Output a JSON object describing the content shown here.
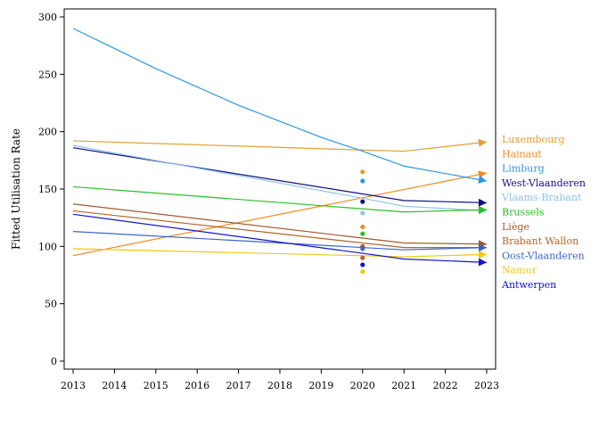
{
  "chart_data": {
    "type": "line",
    "title": "",
    "xlabel": "",
    "ylabel": "Fitted Utilisation Rate",
    "xlim": [
      2013,
      2023
    ],
    "ylim": [
      0,
      300
    ],
    "x_ticks": [
      "2013",
      "2014",
      "2015",
      "2016",
      "2017",
      "2018",
      "2019",
      "2020",
      "2021",
      "2022",
      "2023"
    ],
    "y_ticks": [
      "0",
      "50",
      "100",
      "150",
      "200",
      "250",
      "300"
    ],
    "legend_position": "right",
    "series": [
      {
        "name": "Luxembourg",
        "color": "#e0a030",
        "points": [
          [
            2013,
            192
          ],
          [
            2020,
            184
          ],
          [
            2021,
            183
          ],
          [
            2023,
            191
          ]
        ],
        "obs_2020": 165
      },
      {
        "name": "Hainaut",
        "color": "#f08c1e",
        "points": [
          [
            2013,
            92
          ],
          [
            2023,
            164
          ]
        ],
        "obs_2020": 117
      },
      {
        "name": "Limburg",
        "color": "#2b96e6",
        "points": [
          [
            2013,
            290
          ],
          [
            2015,
            255
          ],
          [
            2017,
            223
          ],
          [
            2019,
            195
          ],
          [
            2020,
            183
          ],
          [
            2021,
            170
          ],
          [
            2023,
            157
          ]
        ],
        "obs_2020": 157
      },
      {
        "name": "West-Vlaanderen",
        "color": "#101080",
        "points": [
          [
            2013,
            186
          ],
          [
            2021,
            140
          ],
          [
            2023,
            138
          ]
        ],
        "obs_2020": 139
      },
      {
        "name": "Vlaams-Brabant",
        "color": "#8ec4e8",
        "points": [
          [
            2013,
            188
          ],
          [
            2020,
            142
          ],
          [
            2021,
            135
          ],
          [
            2023,
            131
          ]
        ],
        "obs_2020": 129
      },
      {
        "name": "Brussels",
        "color": "#28c028",
        "points": [
          [
            2013,
            152
          ],
          [
            2021,
            130
          ],
          [
            2023,
            132
          ]
        ],
        "obs_2020": 111
      },
      {
        "name": "Liège",
        "color": "#a05a32",
        "points": [
          [
            2013,
            137
          ],
          [
            2021,
            103
          ],
          [
            2023,
            102
          ]
        ],
        "obs_2020": 100
      },
      {
        "name": "Brabant Wallon",
        "color": "#b46428",
        "points": [
          [
            2013,
            131
          ],
          [
            2021,
            99
          ],
          [
            2023,
            99
          ]
        ],
        "obs_2020": 90
      },
      {
        "name": "Oost-Vlaanderen",
        "color": "#3c64c8",
        "points": [
          [
            2013,
            113
          ],
          [
            2021,
            97
          ],
          [
            2023,
            99
          ]
        ],
        "obs_2020": 98
      },
      {
        "name": "Namur",
        "color": "#f0c814",
        "points": [
          [
            2013,
            98
          ],
          [
            2021,
            91
          ],
          [
            2023,
            93
          ]
        ],
        "obs_2020": 78
      },
      {
        "name": "Antwerpen",
        "color": "#1414c8",
        "points": [
          [
            2013,
            128
          ],
          [
            2020,
            94
          ],
          [
            2021,
            89
          ],
          [
            2023,
            86
          ]
        ],
        "obs_2020": 84
      }
    ]
  }
}
